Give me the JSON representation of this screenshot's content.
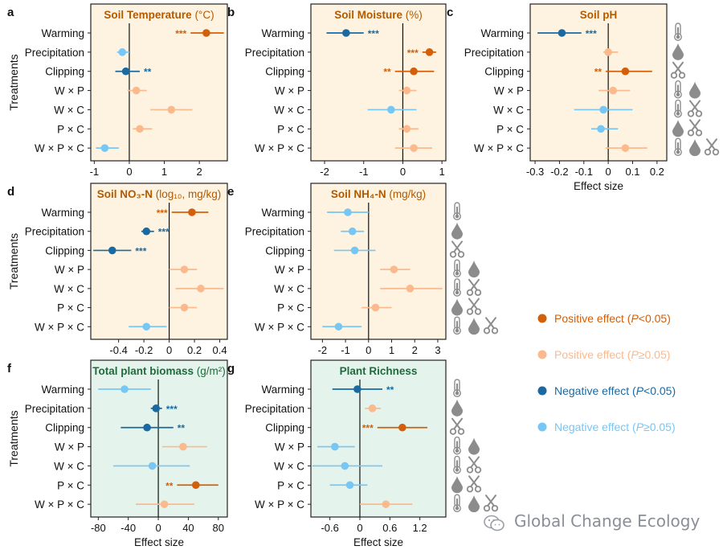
{
  "figure": {
    "y_title": "Treatments",
    "x_title": "Effect size",
    "treatments": [
      "Warming",
      "Precipitation",
      "Clipping",
      "W × P",
      "W × C",
      "P × C",
      "W × P × C"
    ],
    "icon_sets": [
      [
        "thermometer"
      ],
      [
        "drop"
      ],
      [
        "scissors"
      ],
      [
        "thermometer",
        "drop"
      ],
      [
        "thermometer",
        "scissors"
      ],
      [
        "drop",
        "scissors"
      ],
      [
        "thermometer",
        "drop",
        "scissors"
      ]
    ]
  },
  "legend": [
    {
      "key": "pos_sig",
      "label": "Positive effect (P<0.05)",
      "color": "#d25f0a"
    },
    {
      "key": "pos_ns",
      "label": "Positive effect (P≥0.05)",
      "color": "#fbb98e"
    },
    {
      "key": "neg_sig",
      "label": "Negative effect (P<0.05)",
      "color": "#1a6aa1"
    },
    {
      "key": "neg_ns",
      "label": "Negative effect (P≥0.05)",
      "color": "#78c6f4"
    }
  ],
  "watermark": "Global Change Ecology",
  "chart_data": [
    {
      "letter": "a",
      "type": "scatter",
      "title": "Soil Temperature",
      "unit": "(°C)",
      "title_color": "#b35a00",
      "bg": "#fdf3e0",
      "xlim": [
        -1.1,
        2.8
      ],
      "ticks": [
        -1,
        0,
        1,
        2
      ],
      "show_x_title": false,
      "points": [
        {
          "x": 2.2,
          "lo": 1.75,
          "hi": 2.7,
          "cls": "pos_sig",
          "stars": "***"
        },
        {
          "x": -0.2,
          "lo": -0.35,
          "hi": 0.0,
          "cls": "neg_ns",
          "stars": ""
        },
        {
          "x": -0.1,
          "lo": -0.4,
          "hi": 0.3,
          "cls": "neg_sig",
          "stars": "**"
        },
        {
          "x": 0.2,
          "lo": -0.05,
          "hi": 0.5,
          "cls": "pos_ns",
          "stars": ""
        },
        {
          "x": 1.2,
          "lo": 0.6,
          "hi": 1.8,
          "cls": "pos_ns",
          "stars": ""
        },
        {
          "x": 0.3,
          "lo": 0.1,
          "hi": 0.65,
          "cls": "pos_ns",
          "stars": ""
        },
        {
          "x": -0.7,
          "lo": -0.95,
          "hi": -0.3,
          "cls": "neg_ns",
          "stars": ""
        }
      ]
    },
    {
      "letter": "b",
      "type": "scatter",
      "title": "Soil Moisture",
      "unit": "(%)",
      "title_color": "#b35a00",
      "bg": "#fdf3e0",
      "xlim": [
        -2.35,
        1.1
      ],
      "ticks": [
        -2,
        -1,
        0,
        1
      ],
      "show_x_title": false,
      "points": [
        {
          "x": -1.45,
          "lo": -1.95,
          "hi": -1.0,
          "cls": "neg_sig",
          "stars": "***"
        },
        {
          "x": 0.68,
          "lo": 0.5,
          "hi": 0.85,
          "cls": "pos_sig",
          "stars": "***"
        },
        {
          "x": 0.28,
          "lo": -0.2,
          "hi": 0.8,
          "cls": "pos_sig",
          "stars": "**"
        },
        {
          "x": 0.1,
          "lo": -0.1,
          "hi": 0.35,
          "cls": "pos_ns",
          "stars": ""
        },
        {
          "x": -0.3,
          "lo": -0.9,
          "hi": 0.35,
          "cls": "neg_ns",
          "stars": ""
        },
        {
          "x": 0.1,
          "lo": -0.1,
          "hi": 0.4,
          "cls": "pos_ns",
          "stars": ""
        },
        {
          "x": 0.28,
          "lo": -0.2,
          "hi": 0.75,
          "cls": "pos_ns",
          "stars": ""
        }
      ]
    },
    {
      "letter": "c",
      "type": "scatter",
      "title": "Soil pH",
      "unit": "",
      "title_color": "#b35a00",
      "bg": "#fdf3e0",
      "xlim": [
        -0.32,
        0.24
      ],
      "ticks": [
        -0.3,
        -0.2,
        -0.1,
        0,
        0.1,
        0.2
      ],
      "show_x_title": true,
      "points": [
        {
          "x": -0.19,
          "lo": -0.29,
          "hi": -0.11,
          "cls": "neg_sig",
          "stars": "***"
        },
        {
          "x": 0.0,
          "lo": -0.02,
          "hi": 0.04,
          "cls": "pos_ns",
          "stars": ""
        },
        {
          "x": 0.07,
          "lo": -0.01,
          "hi": 0.18,
          "cls": "pos_sig",
          "stars": "**"
        },
        {
          "x": 0.02,
          "lo": -0.04,
          "hi": 0.09,
          "cls": "pos_ns",
          "stars": ""
        },
        {
          "x": -0.02,
          "lo": -0.14,
          "hi": 0.1,
          "cls": "neg_ns",
          "stars": ""
        },
        {
          "x": -0.03,
          "lo": -0.07,
          "hi": 0.04,
          "cls": "neg_ns",
          "stars": ""
        },
        {
          "x": 0.07,
          "lo": -0.01,
          "hi": 0.16,
          "cls": "pos_ns",
          "stars": ""
        }
      ]
    },
    {
      "letter": "d",
      "type": "scatter",
      "title": "Soil NO₃-N",
      "unit": "(log₁₀, mg/kg)",
      "title_color": "#b35a00",
      "bg": "#fdf3e0",
      "xlim": [
        -0.62,
        0.46
      ],
      "ticks": [
        -0.4,
        -0.2,
        0,
        0.2,
        0.4
      ],
      "show_x_title": false,
      "points": [
        {
          "x": 0.18,
          "lo": 0.02,
          "hi": 0.31,
          "cls": "pos_sig",
          "stars": "***"
        },
        {
          "x": -0.18,
          "lo": -0.22,
          "hi": -0.12,
          "cls": "neg_sig",
          "stars": "***"
        },
        {
          "x": -0.45,
          "lo": -0.6,
          "hi": -0.3,
          "cls": "neg_sig",
          "stars": "***"
        },
        {
          "x": 0.12,
          "lo": 0.0,
          "hi": 0.22,
          "cls": "pos_ns",
          "stars": ""
        },
        {
          "x": 0.25,
          "lo": 0.05,
          "hi": 0.43,
          "cls": "pos_ns",
          "stars": ""
        },
        {
          "x": 0.12,
          "lo": 0.0,
          "hi": 0.22,
          "cls": "pos_ns",
          "stars": ""
        },
        {
          "x": -0.18,
          "lo": -0.32,
          "hi": -0.02,
          "cls": "neg_ns",
          "stars": ""
        }
      ]
    },
    {
      "letter": "e",
      "type": "scatter",
      "title": "Soil NH₄-N",
      "unit": "(mg/kg)",
      "title_color": "#b35a00",
      "bg": "#fdf3e0",
      "xlim": [
        -2.5,
        3.35
      ],
      "ticks": [
        -2,
        -1,
        0,
        1,
        2,
        3
      ],
      "show_x_title": false,
      "points": [
        {
          "x": -0.9,
          "lo": -1.8,
          "hi": 0.0,
          "cls": "neg_ns",
          "stars": ""
        },
        {
          "x": -0.7,
          "lo": -1.2,
          "hi": -0.2,
          "cls": "neg_ns",
          "stars": ""
        },
        {
          "x": -0.6,
          "lo": -1.5,
          "hi": 0.3,
          "cls": "neg_ns",
          "stars": ""
        },
        {
          "x": 1.1,
          "lo": 0.5,
          "hi": 1.8,
          "cls": "pos_ns",
          "stars": ""
        },
        {
          "x": 1.8,
          "lo": 0.5,
          "hi": 3.2,
          "cls": "pos_ns",
          "stars": ""
        },
        {
          "x": 0.3,
          "lo": -0.3,
          "hi": 1.0,
          "cls": "pos_ns",
          "stars": ""
        },
        {
          "x": -1.3,
          "lo": -2.0,
          "hi": -0.3,
          "cls": "neg_ns",
          "stars": ""
        }
      ]
    },
    {
      "letter": "f",
      "type": "scatter",
      "title": "Total plant biomass",
      "unit": "(g/m²)",
      "title_color": "#1e6b3c",
      "bg": "#e4f4ec",
      "xlim": [
        -90,
        92
      ],
      "ticks": [
        -80,
        -40,
        0,
        40,
        80
      ],
      "show_x_title": true,
      "points": [
        {
          "x": -45,
          "lo": -80,
          "hi": -10,
          "cls": "neg_ns",
          "stars": ""
        },
        {
          "x": -3,
          "lo": -10,
          "hi": 5,
          "cls": "neg_sig",
          "stars": "***"
        },
        {
          "x": -15,
          "lo": -50,
          "hi": 20,
          "cls": "neg_sig",
          "stars": "**"
        },
        {
          "x": 33,
          "lo": 5,
          "hi": 65,
          "cls": "pos_ns",
          "stars": ""
        },
        {
          "x": -8,
          "lo": -60,
          "hi": 42,
          "cls": "neg_ns",
          "stars": ""
        },
        {
          "x": 50,
          "lo": 25,
          "hi": 80,
          "cls": "pos_sig",
          "stars": "**"
        },
        {
          "x": 8,
          "lo": -30,
          "hi": 48,
          "cls": "pos_ns",
          "stars": ""
        }
      ]
    },
    {
      "letter": "g",
      "type": "scatter",
      "title": "Plant Richness",
      "unit": "",
      "title_color": "#1e6b3c",
      "bg": "#e4f4ec",
      "xlim": [
        -0.98,
        1.72
      ],
      "ticks": [
        -0.6,
        0,
        0.6,
        1.2
      ],
      "show_x_title": true,
      "points": [
        {
          "x": -0.05,
          "lo": -0.55,
          "hi": 0.45,
          "cls": "neg_sig",
          "stars": "**"
        },
        {
          "x": 0.25,
          "lo": 0.1,
          "hi": 0.42,
          "cls": "pos_ns",
          "stars": ""
        },
        {
          "x": 0.85,
          "lo": 0.35,
          "hi": 1.35,
          "cls": "pos_sig",
          "stars": "***"
        },
        {
          "x": -0.5,
          "lo": -0.85,
          "hi": -0.1,
          "cls": "neg_ns",
          "stars": ""
        },
        {
          "x": -0.3,
          "lo": -0.95,
          "hi": 0.45,
          "cls": "neg_ns",
          "stars": ""
        },
        {
          "x": -0.2,
          "lo": -0.6,
          "hi": 0.15,
          "cls": "neg_ns",
          "stars": ""
        },
        {
          "x": 0.52,
          "lo": 0.0,
          "hi": 1.05,
          "cls": "pos_ns",
          "stars": ""
        }
      ]
    }
  ]
}
